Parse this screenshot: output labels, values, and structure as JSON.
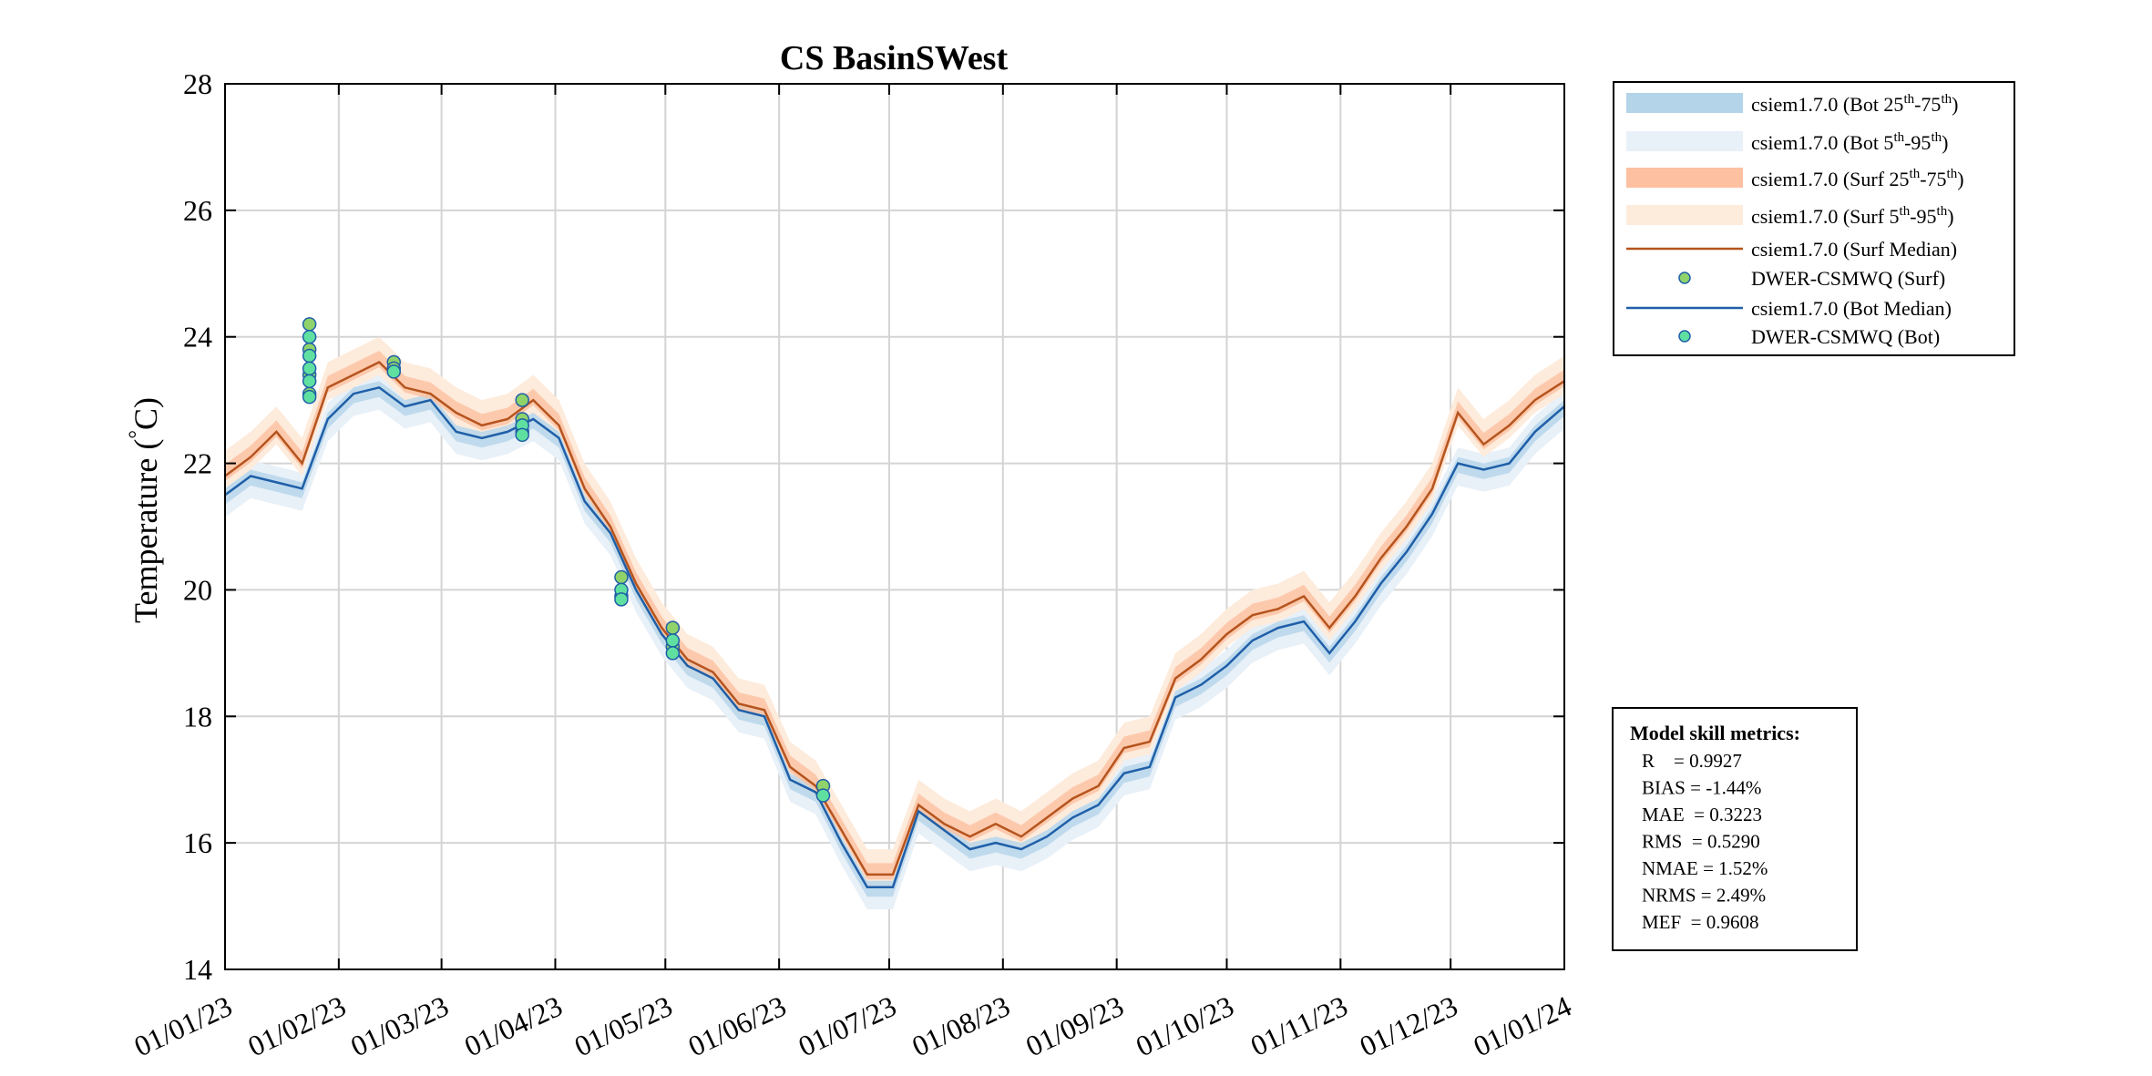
{
  "chart_data": {
    "type": "line",
    "title": "CS BasinSWest",
    "ylabel_main": "Temperature (",
    "ylabel_unit": "C)",
    "ylabel_degree": "°",
    "xlabel": "",
    "ylim": [
      14,
      28
    ],
    "yticks": [
      14,
      16,
      18,
      20,
      22,
      24,
      26,
      28
    ],
    "xlim": [
      "2023-01-01",
      "2024-01-01"
    ],
    "xticks": [
      {
        "date": "2023-01-01",
        "label": "01/01/23"
      },
      {
        "date": "2023-02-01",
        "label": "01/02/23"
      },
      {
        "date": "2023-03-01",
        "label": "01/03/23"
      },
      {
        "date": "2023-04-01",
        "label": "01/04/23"
      },
      {
        "date": "2023-05-01",
        "label": "01/05/23"
      },
      {
        "date": "2023-06-01",
        "label": "01/06/23"
      },
      {
        "date": "2023-07-01",
        "label": "01/07/23"
      },
      {
        "date": "2023-08-01",
        "label": "01/08/23"
      },
      {
        "date": "2023-09-01",
        "label": "01/09/23"
      },
      {
        "date": "2023-10-01",
        "label": "01/10/23"
      },
      {
        "date": "2023-11-01",
        "label": "01/11/23"
      },
      {
        "date": "2023-12-01",
        "label": "01/12/23"
      },
      {
        "date": "2024-01-01",
        "label": "01/01/24"
      }
    ],
    "grid": true,
    "legend_position": "outside-top-right",
    "colors": {
      "surf_median": "#b5541e",
      "bot_median": "#1f5fa8",
      "bot_iqr": "#b4d4ea",
      "bot_90": "#e8f0f8",
      "surf_iqr": "#fdc0a0",
      "surf_90": "#fdebdc",
      "obs_surf_fill": "#8fd36a",
      "obs_bot_fill": "#5fe0a0",
      "obs_edge": "#1f5fa8"
    },
    "legend": [
      {
        "key": "bot_iqr",
        "label": "csiem1.7.0 (Bot 25",
        "sup1": "th",
        "mid": "-75",
        "sup2": "th",
        "end": ")",
        "kind": "patch"
      },
      {
        "key": "bot_90",
        "label": "csiem1.7.0 (Bot 5",
        "sup1": "th",
        "mid": "-95",
        "sup2": "th",
        "end": ")",
        "kind": "patch"
      },
      {
        "key": "surf_iqr",
        "label": "csiem1.7.0 (Surf 25",
        "sup1": "th",
        "mid": "-75",
        "sup2": "th",
        "end": ")",
        "kind": "patch"
      },
      {
        "key": "surf_90",
        "label": "csiem1.7.0 (Surf 5",
        "sup1": "th",
        "mid": "-95",
        "sup2": "th",
        "end": ")",
        "kind": "patch"
      },
      {
        "key": "surf_median",
        "label": "csiem1.7.0 (Surf Median)",
        "kind": "line"
      },
      {
        "key": "obs_surf_fill",
        "label": "DWER-CSMWQ (Surf)",
        "kind": "marker"
      },
      {
        "key": "bot_median",
        "label": "csiem1.7.0 (Bot Median)",
        "kind": "line"
      },
      {
        "key": "obs_bot_fill",
        "label": "DWER-CSMWQ (Bot)",
        "kind": "marker"
      }
    ],
    "series": [
      {
        "name": "csiem1.7.0 (Surf Median)",
        "x": [
          "2023-01-01",
          "2023-01-08",
          "2023-01-15",
          "2023-01-22",
          "2023-01-29",
          "2023-02-05",
          "2023-02-12",
          "2023-02-19",
          "2023-02-26",
          "2023-03-05",
          "2023-03-12",
          "2023-03-19",
          "2023-03-26",
          "2023-04-02",
          "2023-04-09",
          "2023-04-16",
          "2023-04-23",
          "2023-04-30",
          "2023-05-07",
          "2023-05-14",
          "2023-05-21",
          "2023-05-28",
          "2023-06-04",
          "2023-06-11",
          "2023-06-18",
          "2023-06-25",
          "2023-07-02",
          "2023-07-09",
          "2023-07-16",
          "2023-07-23",
          "2023-07-30",
          "2023-08-06",
          "2023-08-13",
          "2023-08-20",
          "2023-08-27",
          "2023-09-03",
          "2023-09-10",
          "2023-09-17",
          "2023-09-24",
          "2023-10-01",
          "2023-10-08",
          "2023-10-15",
          "2023-10-22",
          "2023-10-29",
          "2023-11-05",
          "2023-11-12",
          "2023-11-19",
          "2023-11-26",
          "2023-12-03",
          "2023-12-10",
          "2023-12-17",
          "2023-12-24",
          "2024-01-01"
        ],
        "y": [
          21.8,
          22.1,
          22.5,
          22.0,
          23.2,
          23.4,
          23.6,
          23.2,
          23.1,
          22.8,
          22.6,
          22.7,
          23.0,
          22.6,
          21.6,
          21.0,
          20.1,
          19.4,
          18.9,
          18.7,
          18.2,
          18.1,
          17.2,
          16.9,
          16.2,
          15.5,
          15.5,
          16.6,
          16.3,
          16.1,
          16.3,
          16.1,
          16.4,
          16.7,
          16.9,
          17.5,
          17.6,
          18.6,
          18.9,
          19.3,
          19.6,
          19.7,
          19.9,
          19.4,
          19.9,
          20.5,
          21.0,
          21.6,
          22.8,
          22.3,
          22.6,
          23.0,
          23.3
        ]
      },
      {
        "name": "csiem1.7.0 (Bot Median)",
        "x": [
          "2023-01-01",
          "2023-01-08",
          "2023-01-15",
          "2023-01-22",
          "2023-01-29",
          "2023-02-05",
          "2023-02-12",
          "2023-02-19",
          "2023-02-26",
          "2023-03-05",
          "2023-03-12",
          "2023-03-19",
          "2023-03-26",
          "2023-04-02",
          "2023-04-09",
          "2023-04-16",
          "2023-04-23",
          "2023-04-30",
          "2023-05-07",
          "2023-05-14",
          "2023-05-21",
          "2023-05-28",
          "2023-06-04",
          "2023-06-11",
          "2023-06-18",
          "2023-06-25",
          "2023-07-02",
          "2023-07-09",
          "2023-07-16",
          "2023-07-23",
          "2023-07-30",
          "2023-08-06",
          "2023-08-13",
          "2023-08-20",
          "2023-08-27",
          "2023-09-03",
          "2023-09-10",
          "2023-09-17",
          "2023-09-24",
          "2023-10-01",
          "2023-10-08",
          "2023-10-15",
          "2023-10-22",
          "2023-10-29",
          "2023-11-05",
          "2023-11-12",
          "2023-11-19",
          "2023-11-26",
          "2023-12-03",
          "2023-12-10",
          "2023-12-17",
          "2023-12-24",
          "2024-01-01"
        ],
        "y": [
          21.5,
          21.8,
          21.7,
          21.6,
          22.7,
          23.1,
          23.2,
          22.9,
          23.0,
          22.5,
          22.4,
          22.5,
          22.7,
          22.4,
          21.4,
          20.9,
          20.0,
          19.3,
          18.8,
          18.6,
          18.1,
          18.0,
          17.0,
          16.8,
          16.0,
          15.3,
          15.3,
          16.5,
          16.2,
          15.9,
          16.0,
          15.9,
          16.1,
          16.4,
          16.6,
          17.1,
          17.2,
          18.3,
          18.5,
          18.8,
          19.2,
          19.4,
          19.5,
          19.0,
          19.5,
          20.1,
          20.6,
          21.2,
          22.0,
          21.9,
          22.0,
          22.5,
          22.9
        ]
      },
      {
        "name": "DWER-CSMWQ (Surf)",
        "x": [
          "2023-01-24",
          "2023-01-24",
          "2023-01-24",
          "2023-01-24",
          "2023-02-16",
          "2023-02-16",
          "2023-03-23",
          "2023-03-23",
          "2023-03-23",
          "2023-04-19",
          "2023-04-19",
          "2023-05-03",
          "2023-05-03",
          "2023-06-13"
        ],
        "y": [
          24.2,
          23.8,
          23.4,
          23.1,
          23.6,
          23.5,
          23.0,
          22.7,
          22.5,
          20.2,
          19.9,
          19.4,
          19.1,
          16.9
        ]
      },
      {
        "name": "DWER-CSMWQ (Bot)",
        "x": [
          "2023-01-24",
          "2023-01-24",
          "2023-01-24",
          "2023-01-24",
          "2023-01-24",
          "2023-02-16",
          "2023-03-23",
          "2023-03-23",
          "2023-04-19",
          "2023-04-19",
          "2023-05-03",
          "2023-05-03",
          "2023-06-13"
        ],
        "y": [
          24.0,
          23.7,
          23.5,
          23.3,
          23.05,
          23.45,
          22.6,
          22.45,
          20.0,
          19.85,
          19.2,
          19.0,
          16.75
        ]
      }
    ],
    "metrics": {
      "title": "Model skill metrics:",
      "lines": [
        "R    = 0.9927",
        "BIAS = -1.44%",
        "MAE  = 0.3223",
        "RMS  = 0.5290",
        "NMAE = 1.52%",
        "NRMS = 2.49%",
        "MEF  = 0.9608"
      ]
    }
  }
}
